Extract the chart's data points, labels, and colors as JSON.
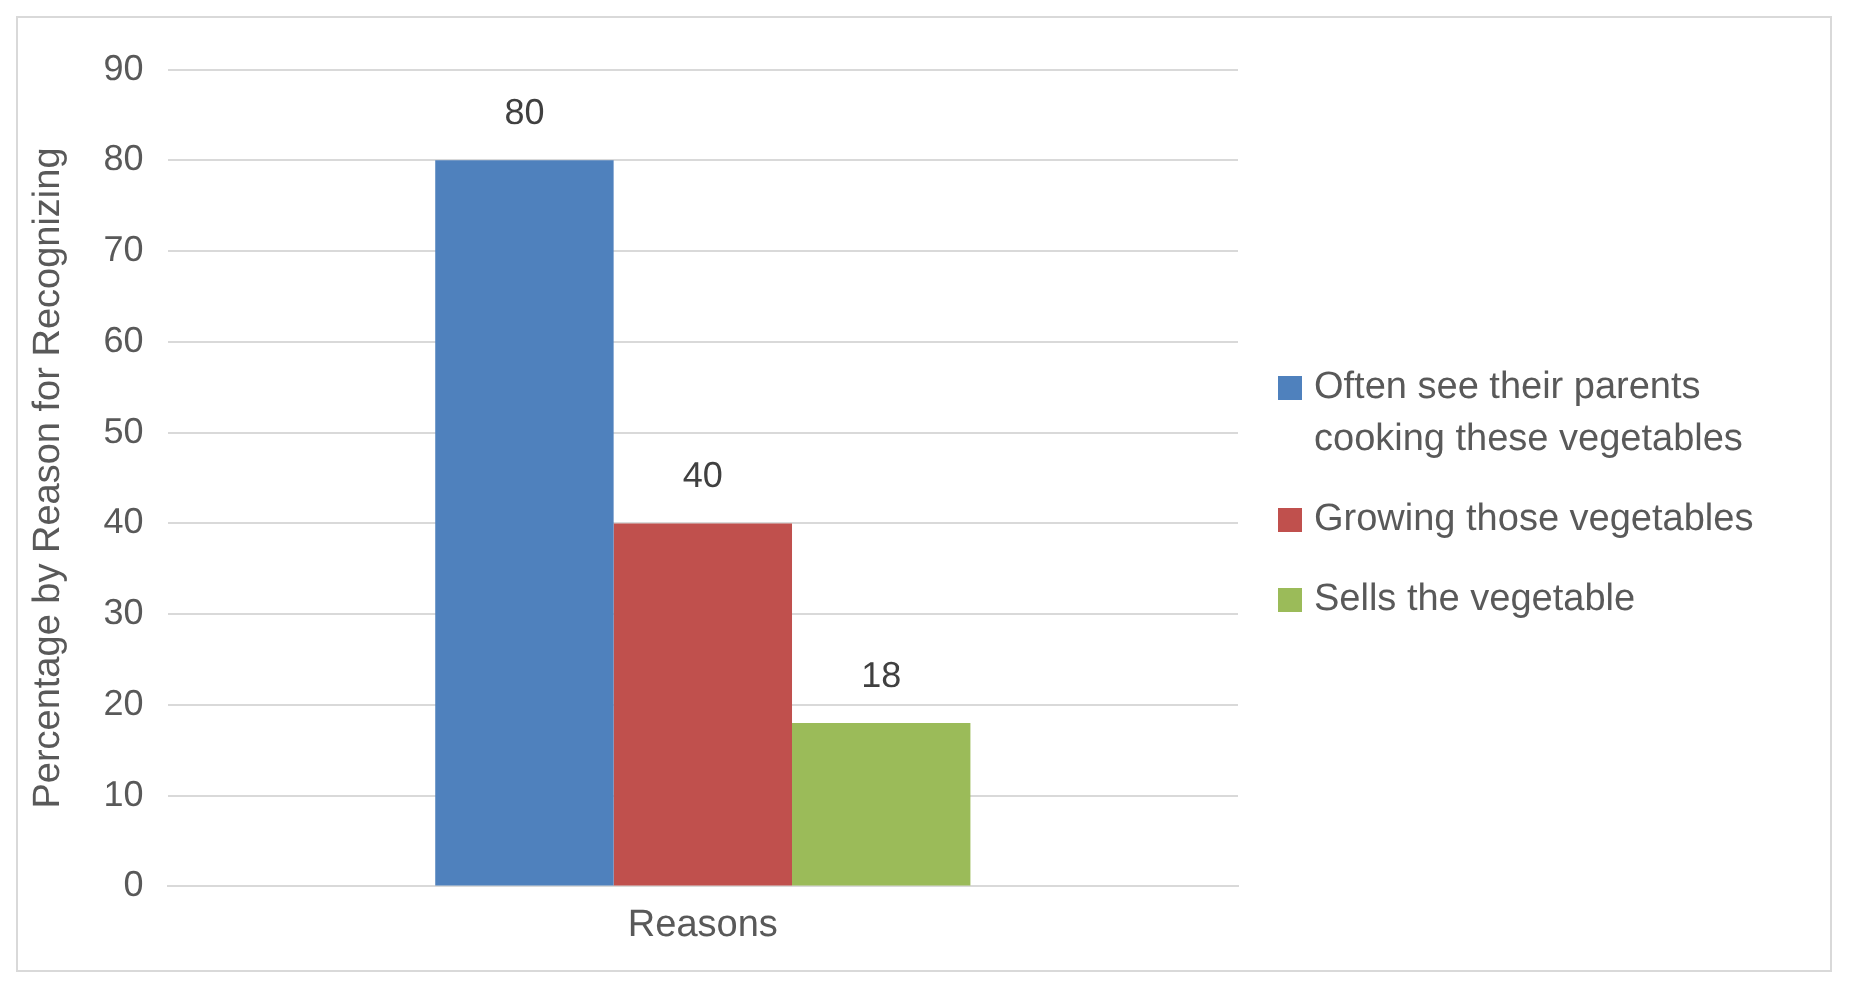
{
  "chart_data": {
    "type": "bar",
    "ylabel": "Percentage by Reason for Recognizing",
    "categories": [
      "Reasons"
    ],
    "series": [
      {
        "name": "Often see their parents cooking these vegetables",
        "color": "#4f81bd",
        "values": [
          80
        ]
      },
      {
        "name": "Growing those vegetables",
        "color": "#c0504d",
        "values": [
          40
        ]
      },
      {
        "name": "Sells the vegetable",
        "color": "#9bbb59",
        "values": [
          18
        ]
      }
    ],
    "ylim": [
      0,
      90
    ],
    "yticks": [
      0,
      10,
      20,
      30,
      40,
      50,
      60,
      70,
      80,
      90
    ],
    "grid": "y",
    "legend": "right",
    "data_labels": true
  }
}
